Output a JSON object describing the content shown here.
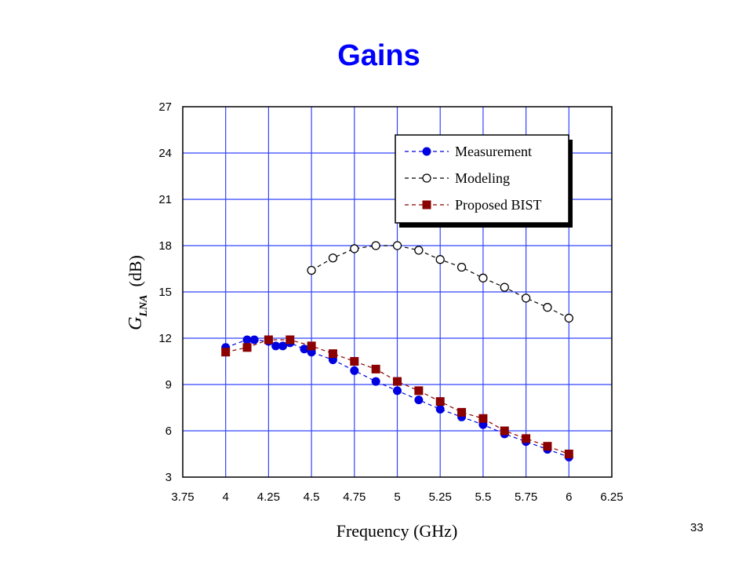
{
  "slide": {
    "title": "Gains",
    "page_number": "33"
  },
  "chart_data": {
    "type": "line",
    "xlabel": "Frequency (GHz)",
    "ylabel_main": "G",
    "ylabel_sub": "LNA",
    "ylabel_unit": "(dB)",
    "xlim": [
      3.75,
      6.25
    ],
    "ylim": [
      3,
      27
    ],
    "x_ticks": [
      "3.75",
      "4",
      "4.25",
      "4.5",
      "4.75",
      "5",
      "5.25",
      "5.5",
      "5.75",
      "6",
      "6.25"
    ],
    "y_ticks": [
      "3",
      "6",
      "9",
      "12",
      "15",
      "18",
      "21",
      "24",
      "27"
    ],
    "grid": true,
    "legend_position": "top-right",
    "series": [
      {
        "name": "Measurement",
        "color": "#0000e0",
        "marker": "filled-circle",
        "x": [
          4.0,
          4.125,
          4.167,
          4.25,
          4.292,
          4.333,
          4.375,
          4.458,
          4.5,
          4.625,
          4.75,
          4.875,
          5.0,
          5.125,
          5.25,
          5.375,
          5.5,
          5.625,
          5.75,
          5.875,
          6.0
        ],
        "y": [
          11.4,
          11.9,
          11.9,
          11.8,
          11.5,
          11.5,
          11.7,
          11.3,
          11.1,
          10.6,
          9.9,
          9.2,
          8.6,
          8.0,
          7.4,
          6.9,
          6.4,
          5.8,
          5.3,
          4.8,
          4.3
        ]
      },
      {
        "name": "Modeling",
        "color": "#000000",
        "marker": "open-circle",
        "x": [
          4.5,
          4.625,
          4.75,
          4.875,
          5.0,
          5.125,
          5.25,
          5.375,
          5.5,
          5.625,
          5.75,
          5.875,
          6.0
        ],
        "y": [
          16.4,
          17.2,
          17.8,
          18.0,
          18.0,
          17.7,
          17.1,
          16.6,
          15.9,
          15.3,
          14.6,
          14.0,
          13.3
        ]
      },
      {
        "name": "Proposed BIST",
        "color": "#8b0000",
        "marker": "filled-square",
        "x": [
          4.0,
          4.125,
          4.25,
          4.375,
          4.5,
          4.625,
          4.75,
          4.875,
          5.0,
          5.125,
          5.25,
          5.375,
          5.5,
          5.625,
          5.75,
          5.875,
          6.0
        ],
        "y": [
          11.1,
          11.4,
          11.9,
          11.9,
          11.5,
          11.0,
          10.5,
          10.0,
          9.2,
          8.6,
          7.9,
          7.2,
          6.8,
          6.0,
          5.5,
          5.0,
          4.5
        ]
      }
    ]
  }
}
